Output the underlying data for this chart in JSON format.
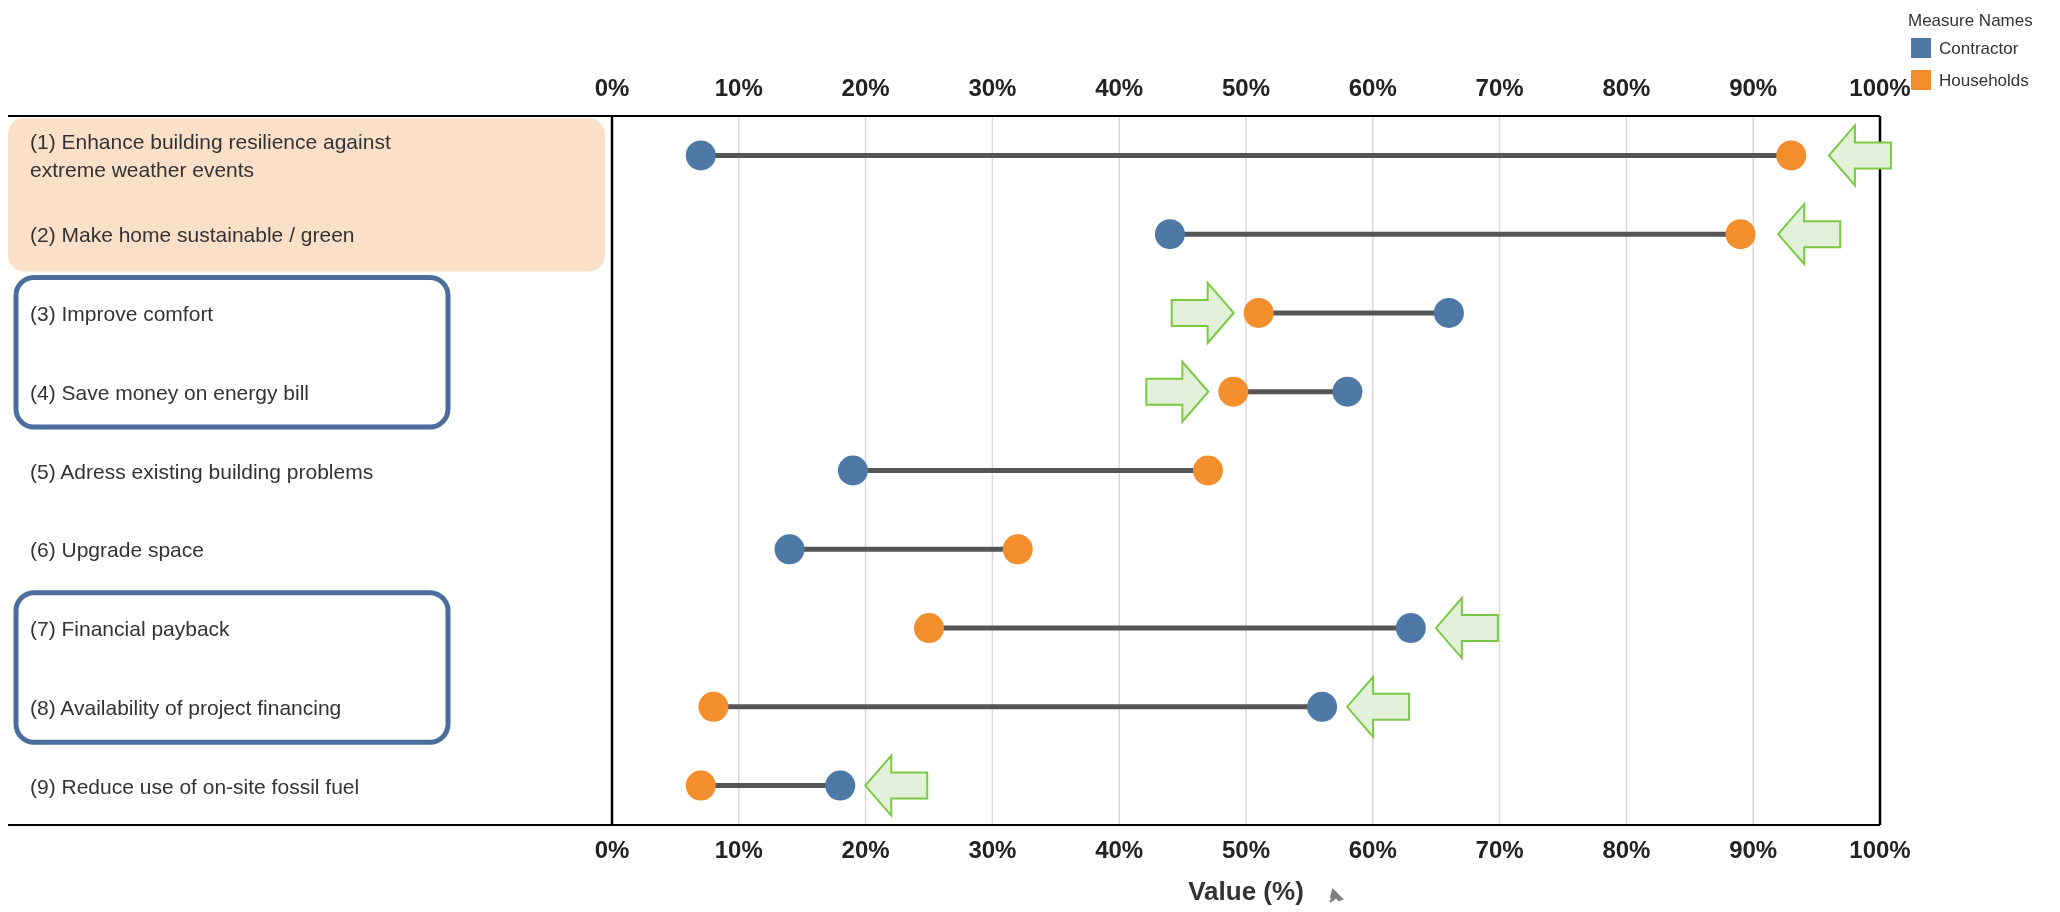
{
  "chart_data": {
    "type": "scatter",
    "orientation": "horizontal",
    "xlabel": "Value (%)",
    "legend_title": "Measure Names",
    "legend": "top right",
    "grid": "x",
    "marker": "circle",
    "categories": [
      "(1) Enhance building resilience against extreme weather events",
      "(2) Make home sustainable / green",
      "(3) Improve comfort",
      "(4) Save money on energy bill",
      "(5) Adress existing building problems",
      "(6) Upgrade space",
      "(7) Financial payback",
      "(8) Availability of project financing",
      "(9) Reduce use of on-site fossil fuel"
    ],
    "series": [
      {
        "name": "Contractor",
        "color": "#4e79a7",
        "values": [
          7,
          44,
          66,
          58,
          19,
          14,
          63,
          56,
          18
        ]
      },
      {
        "name": "Households",
        "color": "#f28e2b",
        "values": [
          93,
          89,
          51,
          49,
          47,
          32,
          25,
          8,
          7
        ]
      }
    ],
    "xlim": [
      0,
      100
    ],
    "xticks": [
      {
        "value": 0,
        "label": "0%"
      },
      {
        "value": 10,
        "label": "10%"
      },
      {
        "value": 20,
        "label": "20%"
      },
      {
        "value": 30,
        "label": "30%"
      },
      {
        "value": 40,
        "label": "40%"
      },
      {
        "value": 50,
        "label": "50%"
      },
      {
        "value": 60,
        "label": "60%"
      },
      {
        "value": 70,
        "label": "70%"
      },
      {
        "value": 80,
        "label": "80%"
      },
      {
        "value": 90,
        "label": "90%"
      },
      {
        "value": 100,
        "label": "100%"
      }
    ],
    "x2lim": [
      0,
      100
    ],
    "x2ticks": [
      {
        "value": 0,
        "label": "0%"
      },
      {
        "value": 10,
        "label": "10%"
      },
      {
        "value": 20,
        "label": "20%"
      },
      {
        "value": 30,
        "label": "30%"
      },
      {
        "value": 40,
        "label": "40%"
      },
      {
        "value": 50,
        "label": "50%"
      },
      {
        "value": 60,
        "label": "60%"
      },
      {
        "value": 70,
        "label": "70%"
      },
      {
        "value": 80,
        "label": "80%"
      },
      {
        "value": 90,
        "label": "90%"
      },
      {
        "value": 100,
        "label": "100%"
      }
    ]
  }
}
